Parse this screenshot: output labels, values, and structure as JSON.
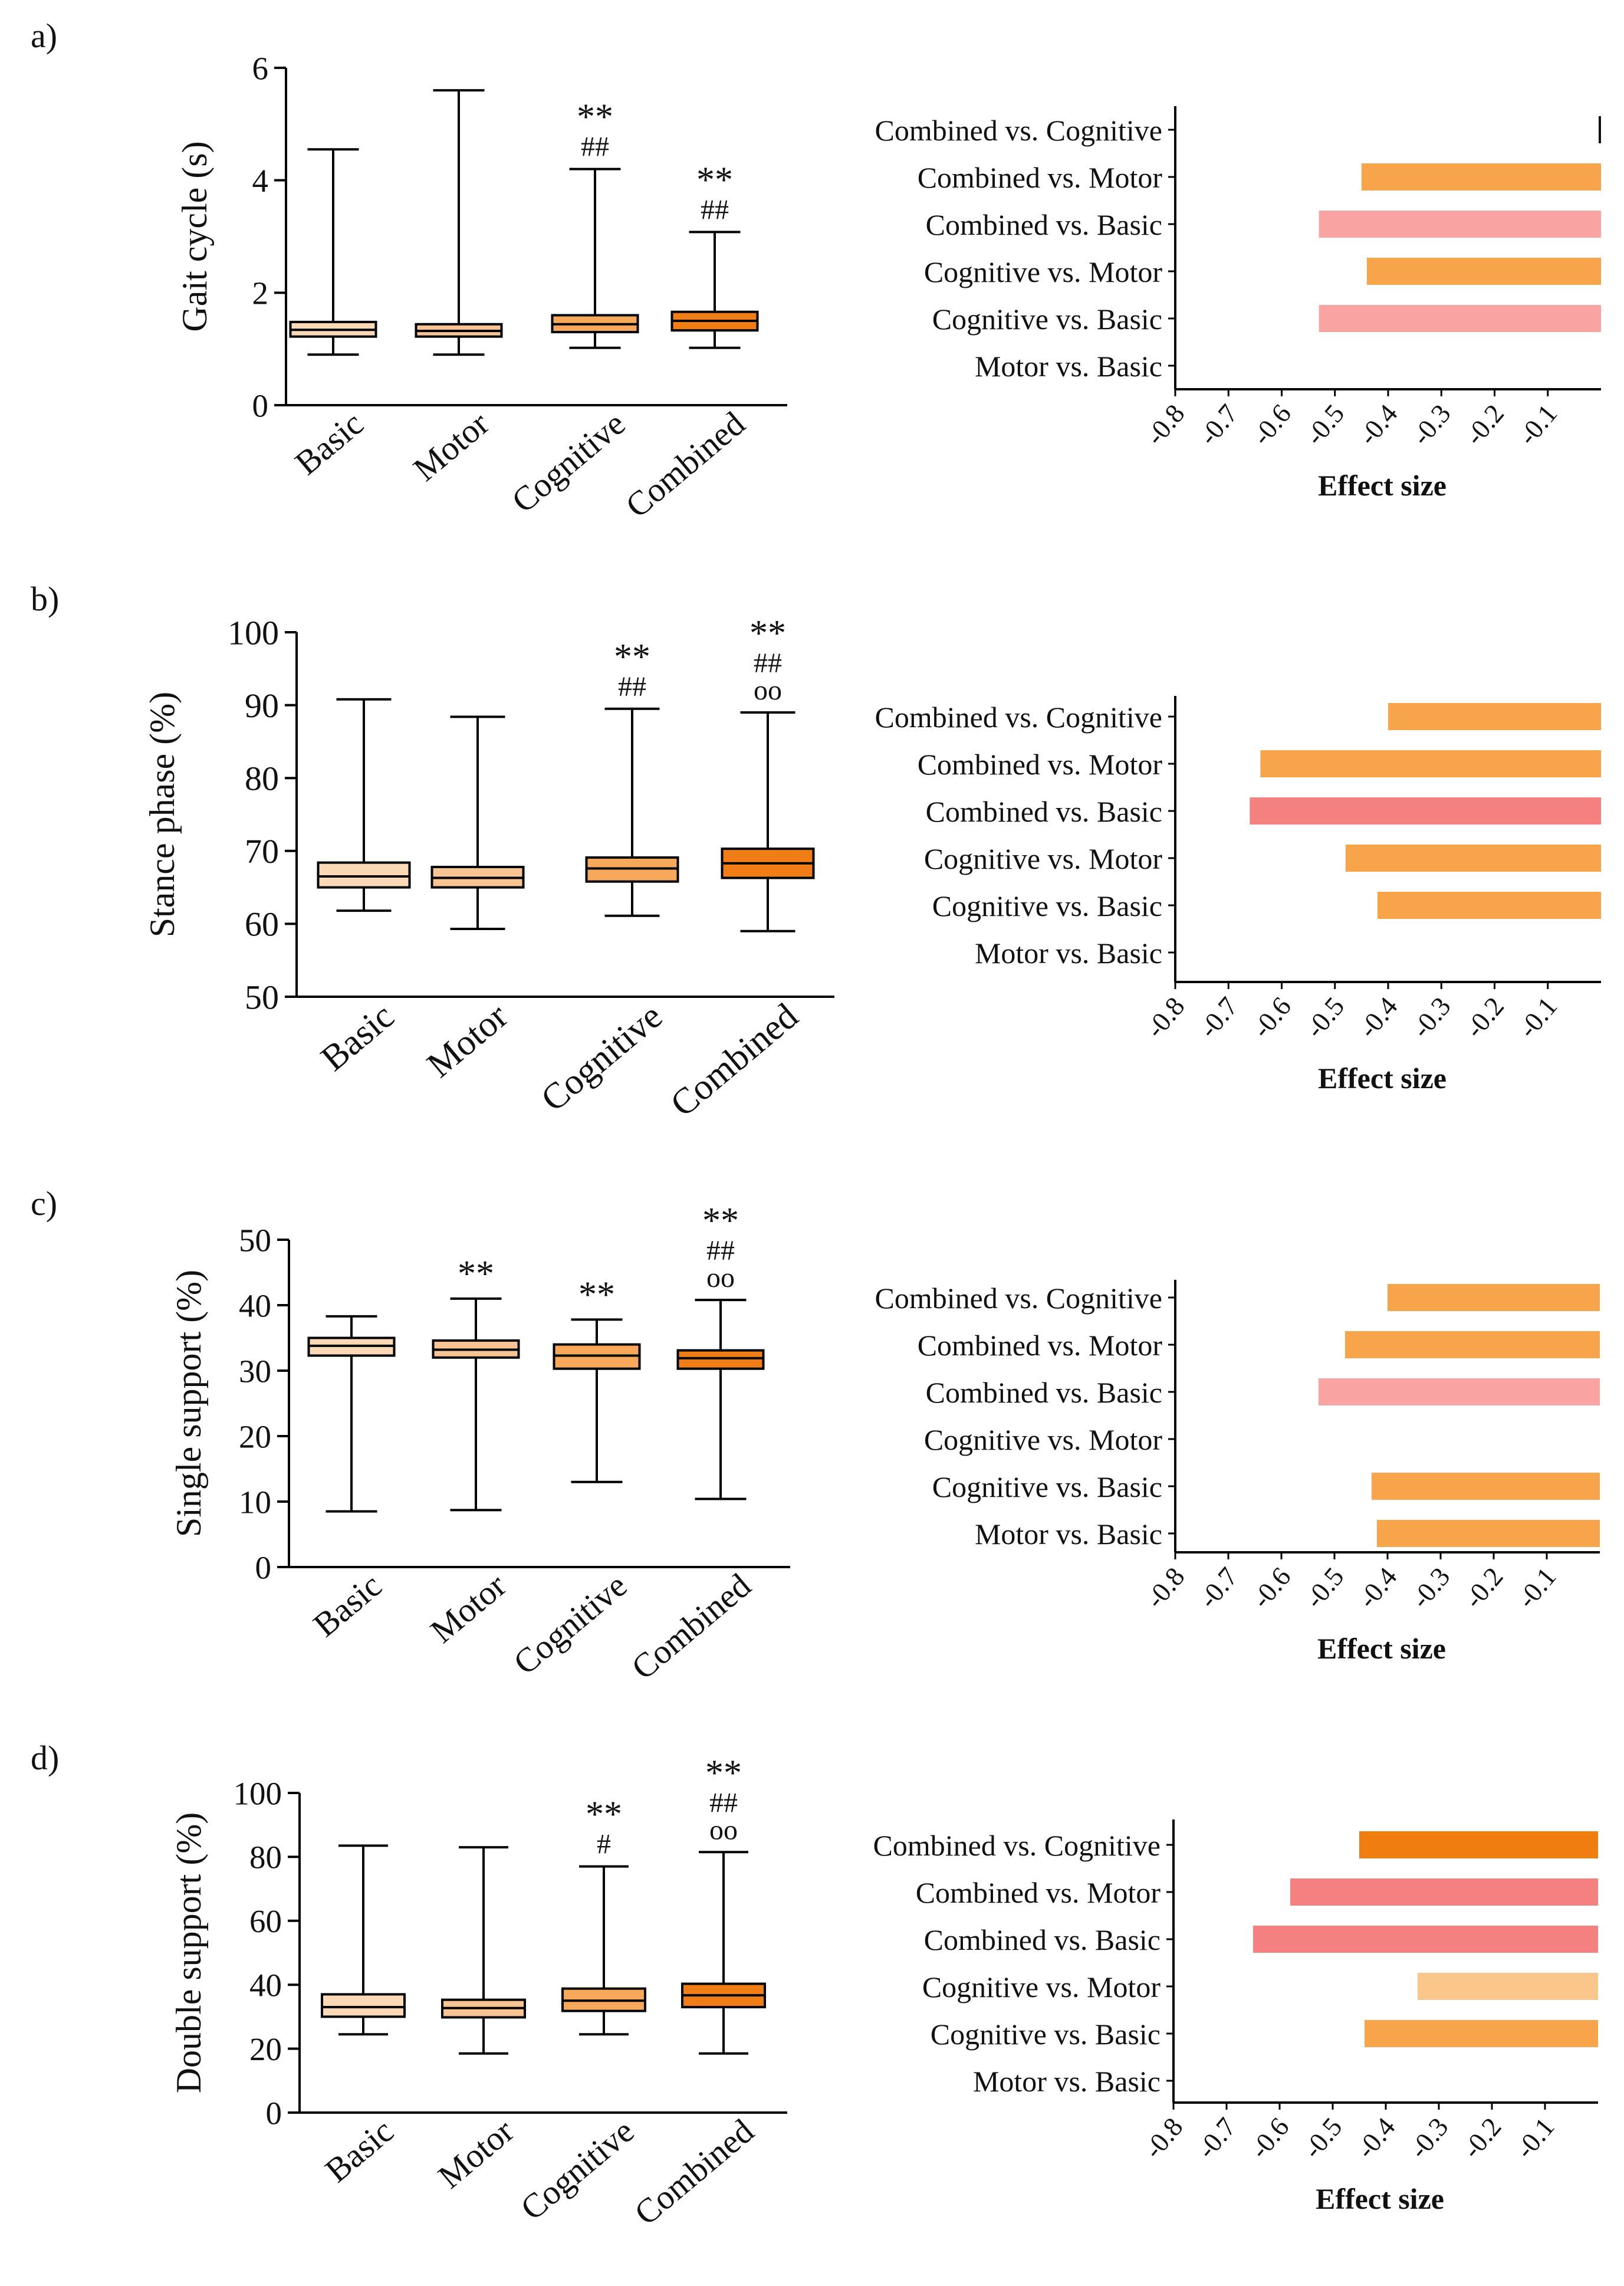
{
  "colors": {
    "basic": "#fbd9b6",
    "motor": "#f9c493",
    "cognitive": "#f7a85a",
    "combined": "#f07d16",
    "bar_orange": "#f8a44a",
    "bar_pink": "#f9a3a3",
    "bar_red": "#f58080",
    "bar_dark_orange": "#f07d10",
    "bar_light_orange": "#fbc68a",
    "axis": "#000000"
  },
  "chart_data": [
    {
      "panel_label": "a)",
      "type": "box",
      "ylabel": "Gait cycle (s)",
      "ylim": [
        0,
        6
      ],
      "yticks": [
        "0",
        "2",
        "4",
        "6"
      ],
      "categories": [
        "Basic",
        "Motor",
        "Cognitive",
        "Combined"
      ],
      "boxes": [
        {
          "min": 0.9,
          "q1": 1.22,
          "median": 1.34,
          "q3": 1.48,
          "max": 4.55,
          "sig": []
        },
        {
          "min": 0.9,
          "q1": 1.22,
          "median": 1.32,
          "q3": 1.44,
          "max": 5.6,
          "sig": []
        },
        {
          "min": 1.02,
          "q1": 1.3,
          "median": 1.44,
          "q3": 1.6,
          "max": 4.2,
          "sig": [
            "**",
            "##"
          ]
        },
        {
          "min": 1.02,
          "q1": 1.33,
          "median": 1.5,
          "q3": 1.66,
          "max": 3.08,
          "sig": [
            "**",
            "##"
          ]
        }
      ],
      "effect": {
        "type": "bar",
        "xlabel": "Effect size",
        "xlim": [
          -0.8,
          0
        ],
        "xticks": [
          "-0.8",
          "-0.7",
          "-0.6",
          "-0.5",
          "-0.4",
          "-0.3",
          "-0.2",
          "-0.1"
        ],
        "categories": [
          "Combined vs. Cognitive",
          "Combined vs. Motor",
          "Combined vs. Basic",
          "Cognitive vs. Motor",
          "Cognitive vs. Basic",
          "Motor vs. Basic"
        ],
        "values": [
          -0.004,
          -0.45,
          -0.53,
          -0.44,
          -0.53,
          0
        ],
        "colors": [
          "#111111",
          "bar_orange",
          "bar_pink",
          "bar_orange",
          "bar_pink",
          "none"
        ]
      }
    },
    {
      "panel_label": "b)",
      "type": "box",
      "ylabel": "Stance phase (%)",
      "ylim": [
        50,
        100
      ],
      "yticks": [
        "50",
        "60",
        "70",
        "80",
        "90",
        "100"
      ],
      "categories": [
        "Basic",
        "Motor",
        "Cognitive",
        "Combined"
      ],
      "boxes": [
        {
          "min": 61.8,
          "q1": 65.0,
          "median": 66.5,
          "q3": 68.4,
          "max": 90.8,
          "sig": []
        },
        {
          "min": 59.3,
          "q1": 65.0,
          "median": 66.3,
          "q3": 67.8,
          "max": 88.4,
          "sig": []
        },
        {
          "min": 61.1,
          "q1": 65.8,
          "median": 67.6,
          "q3": 69.1,
          "max": 89.5,
          "sig": [
            "**",
            "##"
          ]
        },
        {
          "min": 59.0,
          "q1": 66.3,
          "median": 68.3,
          "q3": 70.3,
          "max": 89.0,
          "sig": [
            "**",
            "##",
            "oo"
          ]
        }
      ],
      "effect": {
        "type": "bar",
        "xlabel": "Effect size",
        "xlim": [
          -0.8,
          0
        ],
        "xticks": [
          "-0.8",
          "-0.7",
          "-0.6",
          "-0.5",
          "-0.4",
          "-0.3",
          "-0.2",
          "-0.1"
        ],
        "categories": [
          "Combined vs. Cognitive",
          "Combined vs. Motor",
          "Combined vs. Basic",
          "Cognitive vs. Motor",
          "Cognitive vs. Basic",
          "Motor vs. Basic"
        ],
        "values": [
          -0.4,
          -0.64,
          -0.66,
          -0.48,
          -0.42,
          0
        ],
        "colors": [
          "bar_orange",
          "bar_orange",
          "bar_red",
          "bar_orange",
          "bar_orange",
          "none"
        ]
      }
    },
    {
      "panel_label": "c)",
      "type": "box",
      "ylabel": "Single support (%)",
      "ylim": [
        0,
        50
      ],
      "yticks": [
        "0",
        "10",
        "20",
        "30",
        "40",
        "50"
      ],
      "categories": [
        "Basic",
        "Motor",
        "Cognitive",
        "Combined"
      ],
      "boxes": [
        {
          "min": 8.5,
          "q1": 32.3,
          "median": 33.8,
          "q3": 35.0,
          "max": 38.3,
          "sig": []
        },
        {
          "min": 8.7,
          "q1": 32.0,
          "median": 33.2,
          "q3": 34.6,
          "max": 41.0,
          "sig": [
            "**"
          ]
        },
        {
          "min": 13.0,
          "q1": 30.3,
          "median": 32.3,
          "q3": 34.0,
          "max": 37.8,
          "sig": [
            "**"
          ]
        },
        {
          "min": 10.4,
          "q1": 30.3,
          "median": 31.9,
          "q3": 33.1,
          "max": 40.8,
          "sig": [
            "**",
            "##",
            "oo"
          ]
        }
      ],
      "effect": {
        "type": "bar",
        "xlabel": "Effect size",
        "xlim": [
          -0.8,
          0
        ],
        "xticks": [
          "-0.8",
          "-0.7",
          "-0.6",
          "-0.5",
          "-0.4",
          "-0.3",
          "-0.2",
          "-0.1"
        ],
        "categories": [
          "Combined vs. Cognitive",
          "Combined vs. Motor",
          "Combined vs. Basic",
          "Cognitive vs. Motor",
          "Cognitive vs. Basic",
          "Motor vs. Basic"
        ],
        "values": [
          -0.4,
          -0.48,
          -0.53,
          0,
          -0.43,
          -0.42
        ],
        "colors": [
          "bar_orange",
          "bar_orange",
          "bar_pink",
          "none",
          "bar_orange",
          "bar_orange"
        ]
      }
    },
    {
      "panel_label": "d)",
      "type": "box",
      "ylabel": "Double support (%)",
      "ylim": [
        0,
        100
      ],
      "yticks": [
        "0",
        "20",
        "40",
        "60",
        "80",
        "100"
      ],
      "categories": [
        "Basic",
        "Motor",
        "Cognitive",
        "Combined"
      ],
      "boxes": [
        {
          "min": 24.5,
          "q1": 30.0,
          "median": 33.0,
          "q3": 37.0,
          "max": 83.5,
          "sig": []
        },
        {
          "min": 18.5,
          "q1": 29.8,
          "median": 32.7,
          "q3": 35.3,
          "max": 83.0,
          "sig": []
        },
        {
          "min": 24.5,
          "q1": 31.8,
          "median": 35.0,
          "q3": 38.8,
          "max": 77.0,
          "sig": [
            "**",
            "#"
          ]
        },
        {
          "min": 18.5,
          "q1": 33.0,
          "median": 36.7,
          "q3": 40.3,
          "max": 81.5,
          "sig": [
            "**",
            "##",
            "oo"
          ]
        }
      ],
      "effect": {
        "type": "bar",
        "xlabel": "Effect size",
        "xlim": [
          -0.8,
          0
        ],
        "xticks": [
          "-0.8",
          "-0.7",
          "-0.6",
          "-0.5",
          "-0.4",
          "-0.3",
          "-0.2",
          "-0.1"
        ],
        "categories": [
          "Combined vs. Cognitive",
          "Combined vs. Motor",
          "Combined vs. Basic",
          "Cognitive vs. Motor",
          "Cognitive vs. Basic",
          "Motor vs. Basic"
        ],
        "values": [
          -0.45,
          -0.58,
          -0.65,
          -0.34,
          -0.44,
          0
        ],
        "colors": [
          "bar_dark_orange",
          "bar_red",
          "bar_red",
          "bar_light_orange",
          "bar_orange",
          "none"
        ]
      }
    }
  ]
}
